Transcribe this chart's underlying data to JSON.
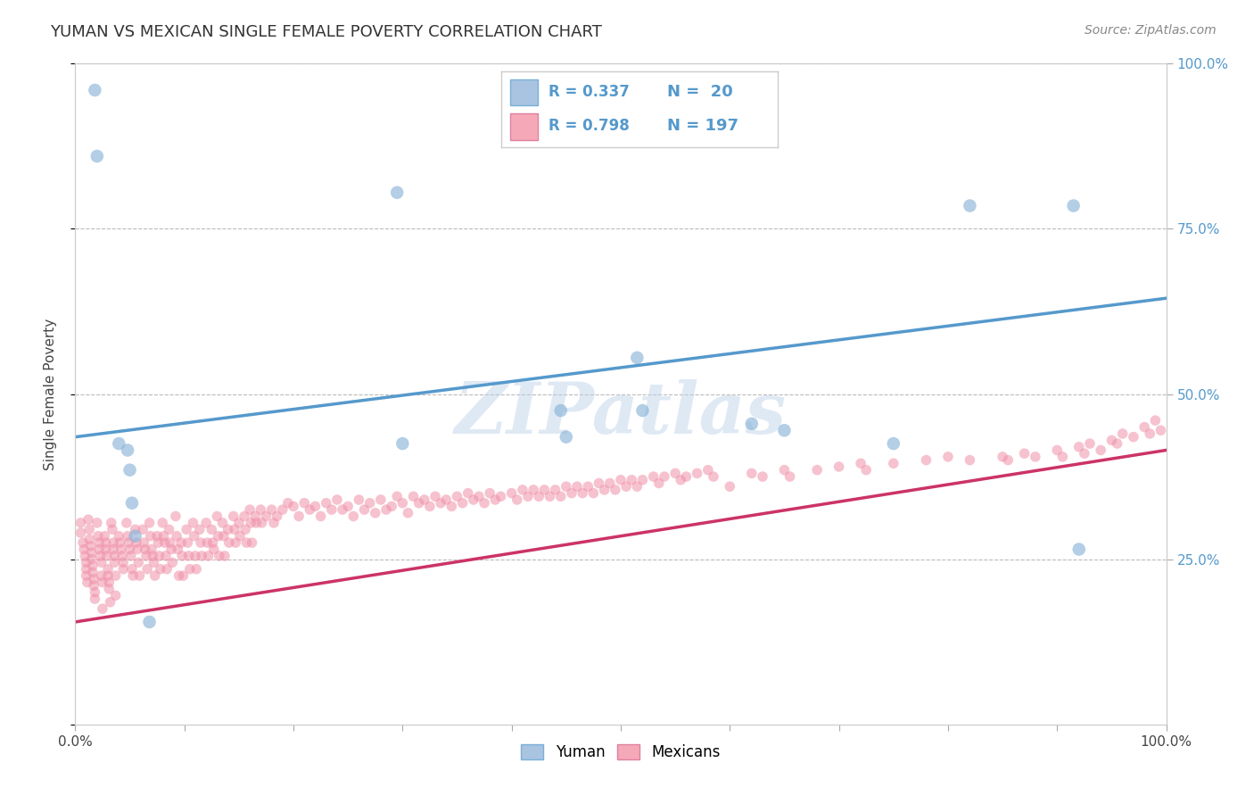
{
  "title": "YUMAN VS MEXICAN SINGLE FEMALE POVERTY CORRELATION CHART",
  "source_text": "Source: ZipAtlas.com",
  "ylabel": "Single Female Poverty",
  "yuman_color": "#8ab4d8",
  "mexican_color": "#f090a8",
  "yuman_line_color": "#5599cc",
  "mexican_line_color": "#cc3366",
  "watermark": "ZIPatlas",
  "xlim": [
    0.0,
    1.0
  ],
  "ylim": [
    0.0,
    1.0
  ],
  "grid_color": "#bbbbbb",
  "background_color": "#ffffff",
  "yuman_line_y0": 0.435,
  "yuman_line_y1": 0.645,
  "mexican_line_y0": 0.155,
  "mexican_line_y1": 0.415,
  "yuman_points": [
    [
      0.018,
      0.96
    ],
    [
      0.02,
      0.86
    ],
    [
      0.04,
      0.425
    ],
    [
      0.048,
      0.415
    ],
    [
      0.05,
      0.385
    ],
    [
      0.052,
      0.335
    ],
    [
      0.055,
      0.285
    ],
    [
      0.068,
      0.155
    ],
    [
      0.295,
      0.805
    ],
    [
      0.3,
      0.425
    ],
    [
      0.445,
      0.475
    ],
    [
      0.45,
      0.435
    ],
    [
      0.515,
      0.555
    ],
    [
      0.52,
      0.475
    ],
    [
      0.62,
      0.455
    ],
    [
      0.65,
      0.445
    ],
    [
      0.75,
      0.425
    ],
    [
      0.82,
      0.785
    ],
    [
      0.915,
      0.785
    ],
    [
      0.92,
      0.265
    ]
  ],
  "mexican_points": [
    [
      0.005,
      0.305
    ],
    [
      0.005,
      0.29
    ],
    [
      0.007,
      0.275
    ],
    [
      0.008,
      0.265
    ],
    [
      0.009,
      0.255
    ],
    [
      0.01,
      0.245
    ],
    [
      0.01,
      0.235
    ],
    [
      0.01,
      0.225
    ],
    [
      0.011,
      0.215
    ],
    [
      0.012,
      0.31
    ],
    [
      0.013,
      0.295
    ],
    [
      0.013,
      0.28
    ],
    [
      0.014,
      0.27
    ],
    [
      0.015,
      0.26
    ],
    [
      0.015,
      0.25
    ],
    [
      0.016,
      0.24
    ],
    [
      0.016,
      0.23
    ],
    [
      0.017,
      0.22
    ],
    [
      0.017,
      0.21
    ],
    [
      0.018,
      0.2
    ],
    [
      0.018,
      0.19
    ],
    [
      0.02,
      0.305
    ],
    [
      0.021,
      0.285
    ],
    [
      0.022,
      0.275
    ],
    [
      0.022,
      0.265
    ],
    [
      0.023,
      0.255
    ],
    [
      0.024,
      0.245
    ],
    [
      0.024,
      0.225
    ],
    [
      0.025,
      0.215
    ],
    [
      0.025,
      0.175
    ],
    [
      0.027,
      0.285
    ],
    [
      0.028,
      0.275
    ],
    [
      0.028,
      0.265
    ],
    [
      0.029,
      0.255
    ],
    [
      0.03,
      0.235
    ],
    [
      0.03,
      0.225
    ],
    [
      0.031,
      0.215
    ],
    [
      0.031,
      0.205
    ],
    [
      0.032,
      0.185
    ],
    [
      0.033,
      0.305
    ],
    [
      0.034,
      0.295
    ],
    [
      0.035,
      0.275
    ],
    [
      0.035,
      0.265
    ],
    [
      0.036,
      0.255
    ],
    [
      0.036,
      0.245
    ],
    [
      0.037,
      0.225
    ],
    [
      0.037,
      0.195
    ],
    [
      0.04,
      0.285
    ],
    [
      0.041,
      0.275
    ],
    [
      0.042,
      0.265
    ],
    [
      0.043,
      0.255
    ],
    [
      0.044,
      0.245
    ],
    [
      0.044,
      0.235
    ],
    [
      0.047,
      0.305
    ],
    [
      0.048,
      0.285
    ],
    [
      0.049,
      0.275
    ],
    [
      0.05,
      0.265
    ],
    [
      0.051,
      0.255
    ],
    [
      0.052,
      0.235
    ],
    [
      0.053,
      0.225
    ],
    [
      0.055,
      0.295
    ],
    [
      0.056,
      0.275
    ],
    [
      0.057,
      0.265
    ],
    [
      0.058,
      0.245
    ],
    [
      0.059,
      0.225
    ],
    [
      0.062,
      0.295
    ],
    [
      0.063,
      0.275
    ],
    [
      0.064,
      0.265
    ],
    [
      0.065,
      0.255
    ],
    [
      0.066,
      0.235
    ],
    [
      0.068,
      0.305
    ],
    [
      0.069,
      0.285
    ],
    [
      0.07,
      0.265
    ],
    [
      0.071,
      0.255
    ],
    [
      0.072,
      0.245
    ],
    [
      0.073,
      0.225
    ],
    [
      0.075,
      0.285
    ],
    [
      0.076,
      0.275
    ],
    [
      0.077,
      0.255
    ],
    [
      0.078,
      0.235
    ],
    [
      0.08,
      0.305
    ],
    [
      0.081,
      0.285
    ],
    [
      0.082,
      0.275
    ],
    [
      0.083,
      0.255
    ],
    [
      0.084,
      0.235
    ],
    [
      0.086,
      0.295
    ],
    [
      0.087,
      0.275
    ],
    [
      0.088,
      0.265
    ],
    [
      0.089,
      0.245
    ],
    [
      0.092,
      0.315
    ],
    [
      0.093,
      0.285
    ],
    [
      0.094,
      0.265
    ],
    [
      0.095,
      0.225
    ],
    [
      0.097,
      0.275
    ],
    [
      0.098,
      0.255
    ],
    [
      0.099,
      0.225
    ],
    [
      0.102,
      0.295
    ],
    [
      0.103,
      0.275
    ],
    [
      0.104,
      0.255
    ],
    [
      0.105,
      0.235
    ],
    [
      0.108,
      0.305
    ],
    [
      0.109,
      0.285
    ],
    [
      0.11,
      0.255
    ],
    [
      0.111,
      0.235
    ],
    [
      0.114,
      0.295
    ],
    [
      0.115,
      0.275
    ],
    [
      0.116,
      0.255
    ],
    [
      0.12,
      0.305
    ],
    [
      0.121,
      0.275
    ],
    [
      0.122,
      0.255
    ],
    [
      0.125,
      0.295
    ],
    [
      0.126,
      0.275
    ],
    [
      0.127,
      0.265
    ],
    [
      0.13,
      0.315
    ],
    [
      0.131,
      0.285
    ],
    [
      0.132,
      0.255
    ],
    [
      0.135,
      0.305
    ],
    [
      0.136,
      0.285
    ],
    [
      0.137,
      0.255
    ],
    [
      0.14,
      0.295
    ],
    [
      0.141,
      0.275
    ],
    [
      0.145,
      0.315
    ],
    [
      0.146,
      0.295
    ],
    [
      0.147,
      0.275
    ],
    [
      0.15,
      0.305
    ],
    [
      0.151,
      0.285
    ],
    [
      0.155,
      0.315
    ],
    [
      0.156,
      0.295
    ],
    [
      0.157,
      0.275
    ],
    [
      0.16,
      0.325
    ],
    [
      0.161,
      0.305
    ],
    [
      0.162,
      0.275
    ],
    [
      0.165,
      0.315
    ],
    [
      0.166,
      0.305
    ],
    [
      0.17,
      0.325
    ],
    [
      0.171,
      0.305
    ],
    [
      0.175,
      0.315
    ],
    [
      0.18,
      0.325
    ],
    [
      0.182,
      0.305
    ],
    [
      0.185,
      0.315
    ],
    [
      0.19,
      0.325
    ],
    [
      0.195,
      0.335
    ],
    [
      0.2,
      0.33
    ],
    [
      0.205,
      0.315
    ],
    [
      0.21,
      0.335
    ],
    [
      0.215,
      0.325
    ],
    [
      0.22,
      0.33
    ],
    [
      0.225,
      0.315
    ],
    [
      0.23,
      0.335
    ],
    [
      0.235,
      0.325
    ],
    [
      0.24,
      0.34
    ],
    [
      0.245,
      0.325
    ],
    [
      0.25,
      0.33
    ],
    [
      0.255,
      0.315
    ],
    [
      0.26,
      0.34
    ],
    [
      0.265,
      0.325
    ],
    [
      0.27,
      0.335
    ],
    [
      0.275,
      0.32
    ],
    [
      0.28,
      0.34
    ],
    [
      0.285,
      0.325
    ],
    [
      0.29,
      0.33
    ],
    [
      0.295,
      0.345
    ],
    [
      0.3,
      0.335
    ],
    [
      0.305,
      0.32
    ],
    [
      0.31,
      0.345
    ],
    [
      0.315,
      0.335
    ],
    [
      0.32,
      0.34
    ],
    [
      0.325,
      0.33
    ],
    [
      0.33,
      0.345
    ],
    [
      0.335,
      0.335
    ],
    [
      0.34,
      0.34
    ],
    [
      0.345,
      0.33
    ],
    [
      0.35,
      0.345
    ],
    [
      0.355,
      0.335
    ],
    [
      0.36,
      0.35
    ],
    [
      0.365,
      0.34
    ],
    [
      0.37,
      0.345
    ],
    [
      0.375,
      0.335
    ],
    [
      0.38,
      0.35
    ],
    [
      0.385,
      0.34
    ],
    [
      0.39,
      0.345
    ],
    [
      0.4,
      0.35
    ],
    [
      0.405,
      0.34
    ],
    [
      0.41,
      0.355
    ],
    [
      0.415,
      0.345
    ],
    [
      0.42,
      0.355
    ],
    [
      0.425,
      0.345
    ],
    [
      0.43,
      0.355
    ],
    [
      0.435,
      0.345
    ],
    [
      0.44,
      0.355
    ],
    [
      0.445,
      0.345
    ],
    [
      0.45,
      0.36
    ],
    [
      0.455,
      0.35
    ],
    [
      0.46,
      0.36
    ],
    [
      0.465,
      0.35
    ],
    [
      0.47,
      0.36
    ],
    [
      0.475,
      0.35
    ],
    [
      0.48,
      0.365
    ],
    [
      0.485,
      0.355
    ],
    [
      0.49,
      0.365
    ],
    [
      0.495,
      0.355
    ],
    [
      0.5,
      0.37
    ],
    [
      0.505,
      0.36
    ],
    [
      0.51,
      0.37
    ],
    [
      0.515,
      0.36
    ],
    [
      0.52,
      0.37
    ],
    [
      0.53,
      0.375
    ],
    [
      0.535,
      0.365
    ],
    [
      0.54,
      0.375
    ],
    [
      0.55,
      0.38
    ],
    [
      0.555,
      0.37
    ],
    [
      0.56,
      0.375
    ],
    [
      0.57,
      0.38
    ],
    [
      0.58,
      0.385
    ],
    [
      0.585,
      0.375
    ],
    [
      0.6,
      0.36
    ],
    [
      0.62,
      0.38
    ],
    [
      0.63,
      0.375
    ],
    [
      0.65,
      0.385
    ],
    [
      0.655,
      0.375
    ],
    [
      0.68,
      0.385
    ],
    [
      0.7,
      0.39
    ],
    [
      0.72,
      0.395
    ],
    [
      0.725,
      0.385
    ],
    [
      0.75,
      0.395
    ],
    [
      0.78,
      0.4
    ],
    [
      0.8,
      0.405
    ],
    [
      0.82,
      0.4
    ],
    [
      0.85,
      0.405
    ],
    [
      0.855,
      0.4
    ],
    [
      0.87,
      0.41
    ],
    [
      0.88,
      0.405
    ],
    [
      0.9,
      0.415
    ],
    [
      0.905,
      0.405
    ],
    [
      0.92,
      0.42
    ],
    [
      0.925,
      0.41
    ],
    [
      0.93,
      0.425
    ],
    [
      0.94,
      0.415
    ],
    [
      0.95,
      0.43
    ],
    [
      0.955,
      0.425
    ],
    [
      0.96,
      0.44
    ],
    [
      0.97,
      0.435
    ],
    [
      0.98,
      0.45
    ],
    [
      0.985,
      0.44
    ],
    [
      0.99,
      0.46
    ],
    [
      0.995,
      0.445
    ]
  ]
}
